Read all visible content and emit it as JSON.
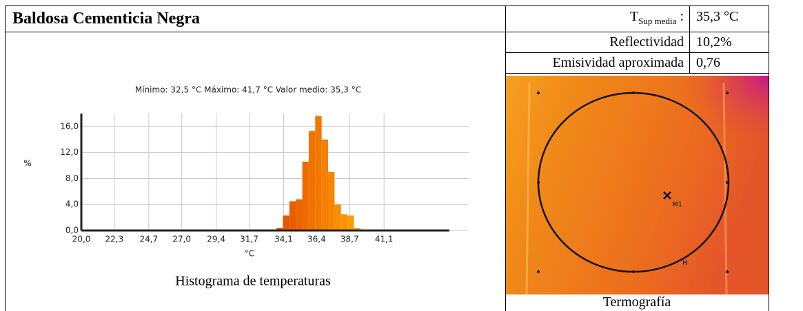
{
  "header": {
    "title": "Baldosa Cementicia Negra"
  },
  "properties": [
    {
      "label": {
        "symbol": "T",
        "subscript": "Sup media",
        "suffix": ":"
      },
      "value": "35,3 °C"
    },
    {
      "label": "Reflectividad",
      "value": "10,2%"
    },
    {
      "label": "Emisividad aproximada",
      "value": "0,76"
    }
  ],
  "chart_data": {
    "type": "histogram",
    "subtitle": "Mínimo: 32,5 °C Máximo: 41,7 °C Valor medio: 35,3 °C",
    "x_label": "°C",
    "y_label": "%",
    "bins": [
      33.6,
      34.05,
      34.5,
      34.95,
      35.4,
      35.85,
      36.3,
      36.75,
      37.2,
      37.65,
      38.1,
      38.55,
      39.0,
      39.45
    ],
    "values": [
      0.4,
      2.3,
      4.5,
      4.8,
      10.6,
      15.3,
      17.6,
      14.0,
      9.0,
      4.0,
      2.5,
      2.3,
      0.4
    ],
    "colors": [
      "#e04e00",
      "#e45600",
      "#e85e00",
      "#eb6400",
      "#ee6b00",
      "#f07200",
      "#f27800",
      "#f47f00",
      "#f68600",
      "#f88d00",
      "#fa9400",
      "#fc9c00",
      "#ffa400"
    ],
    "xlim": [
      20,
      47
    ],
    "ylim": [
      0,
      18
    ],
    "xticks": [
      {
        "value": 20.0,
        "label": "20,0"
      },
      {
        "value": 22.3,
        "label": "22,3"
      },
      {
        "value": 24.7,
        "label": "24,7"
      },
      {
        "value": 27.0,
        "label": "27,0"
      },
      {
        "value": 29.4,
        "label": "29,4"
      },
      {
        "value": 31.7,
        "label": "31,7"
      },
      {
        "value": 34.1,
        "label": "34,1"
      },
      {
        "value": 36.4,
        "label": "36,4"
      },
      {
        "value": 38.7,
        "label": "38,7"
      },
      {
        "value": 41.1,
        "label": "41,1"
      }
    ],
    "yticks": [
      {
        "value": 0,
        "label": "0,0"
      },
      {
        "value": 4,
        "label": "4,0"
      },
      {
        "value": 8,
        "label": "8,0"
      },
      {
        "value": 12,
        "label": "12,0"
      },
      {
        "value": 16,
        "label": "16,0"
      }
    ],
    "grid": true,
    "caption": "Histograma de temperaturas"
  },
  "thermogram": {
    "marker_label": "M1",
    "handle_label": "H",
    "caption": "Termografía"
  }
}
